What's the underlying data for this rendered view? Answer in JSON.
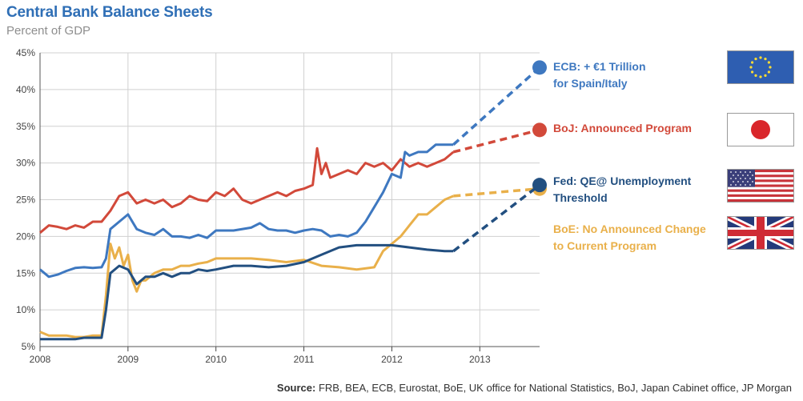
{
  "chart_data": {
    "type": "line",
    "title": "Central Bank Balance Sheets",
    "subtitle": "Percent of GDP",
    "ylim": [
      5,
      45
    ],
    "xlim": [
      2008,
      2013.68
    ],
    "yticks": [
      "5%",
      "10%",
      "15%",
      "20%",
      "25%",
      "30%",
      "35%",
      "40%",
      "45%"
    ],
    "xticks": [
      "2008",
      "2009",
      "2010",
      "2011",
      "2012",
      "2013"
    ],
    "grid": true,
    "series": [
      {
        "name": "ECB: + €1 Trillion\nfor Spain/Italy",
        "color": "#3e78c0",
        "x": [
          2008.0,
          2008.1,
          2008.2,
          2008.3,
          2008.4,
          2008.5,
          2008.6,
          2008.7,
          2008.75,
          2008.8,
          2008.9,
          2009.0,
          2009.1,
          2009.2,
          2009.3,
          2009.4,
          2009.5,
          2009.6,
          2009.7,
          2009.8,
          2009.9,
          2010.0,
          2010.2,
          2010.4,
          2010.5,
          2010.6,
          2010.7,
          2010.8,
          2010.9,
          2011.0,
          2011.1,
          2011.2,
          2011.3,
          2011.4,
          2011.5,
          2011.6,
          2011.7,
          2011.8,
          2011.9,
          2012.0,
          2012.1,
          2012.15,
          2012.2,
          2012.3,
          2012.4,
          2012.5,
          2012.6,
          2012.7
        ],
        "y": [
          15.5,
          14.5,
          14.8,
          15.3,
          15.7,
          15.8,
          15.7,
          15.8,
          17,
          21,
          22,
          23,
          21,
          20.5,
          20.2,
          21,
          20,
          20,
          19.8,
          20.2,
          19.8,
          20.8,
          20.8,
          21.2,
          21.8,
          21,
          20.8,
          20.8,
          20.5,
          20.8,
          21,
          20.8,
          20,
          20.2,
          20,
          20.5,
          22,
          24,
          26,
          28.5,
          28,
          31.5,
          31,
          31.5,
          31.5,
          32.5,
          32.5,
          32.5
        ],
        "projection": [
          [
            2012.7,
            32.5
          ],
          [
            2013.68,
            43
          ]
        ]
      },
      {
        "name": "BoJ: Announced Program",
        "color": "#d2493a",
        "x": [
          2008.0,
          2008.1,
          2008.2,
          2008.3,
          2008.4,
          2008.5,
          2008.6,
          2008.7,
          2008.8,
          2008.9,
          2009.0,
          2009.1,
          2009.2,
          2009.3,
          2009.4,
          2009.5,
          2009.6,
          2009.7,
          2009.8,
          2009.9,
          2010.0,
          2010.1,
          2010.2,
          2010.3,
          2010.4,
          2010.5,
          2010.6,
          2010.7,
          2010.8,
          2010.9,
          2011.0,
          2011.1,
          2011.15,
          2011.2,
          2011.25,
          2011.3,
          2011.4,
          2011.5,
          2011.6,
          2011.7,
          2011.8,
          2011.9,
          2012.0,
          2012.1,
          2012.2,
          2012.3,
          2012.4,
          2012.5,
          2012.6,
          2012.7
        ],
        "y": [
          20.5,
          21.5,
          21.3,
          21,
          21.5,
          21.2,
          22,
          22,
          23.5,
          25.5,
          26,
          24.5,
          25,
          24.5,
          25,
          24,
          24.5,
          25.5,
          25,
          24.8,
          26,
          25.5,
          26.5,
          25,
          24.5,
          25,
          25.5,
          26,
          25.5,
          26.2,
          26.5,
          27,
          32,
          28.5,
          30,
          28,
          28.5,
          29,
          28.5,
          30,
          29.5,
          30,
          29,
          30.5,
          29.5,
          30,
          29.5,
          30,
          30.5,
          31.5
        ],
        "projection": [
          [
            2012.7,
            31.5
          ],
          [
            2013.68,
            34.5
          ]
        ]
      },
      {
        "name": "Fed: QE@ Unemployment\nThreshold",
        "color": "#224f80",
        "x": [
          2008.0,
          2008.1,
          2008.2,
          2008.3,
          2008.4,
          2008.5,
          2008.6,
          2008.7,
          2008.75,
          2008.8,
          2008.9,
          2009.0,
          2009.1,
          2009.2,
          2009.3,
          2009.4,
          2009.5,
          2009.6,
          2009.7,
          2009.8,
          2009.9,
          2010.0,
          2010.2,
          2010.4,
          2010.6,
          2010.8,
          2011.0,
          2011.2,
          2011.4,
          2011.6,
          2011.8,
          2012.0,
          2012.2,
          2012.4,
          2012.6,
          2012.7
        ],
        "y": [
          6,
          6,
          6,
          6,
          6,
          6.2,
          6.2,
          6.2,
          10,
          15,
          16,
          15.5,
          13.5,
          14.5,
          14.5,
          15,
          14.5,
          15,
          15,
          15.5,
          15.3,
          15.5,
          16,
          16,
          15.8,
          16,
          16.5,
          17.5,
          18.5,
          18.8,
          18.8,
          18.8,
          18.5,
          18.2,
          18,
          18
        ],
        "projection": [
          [
            2012.7,
            18
          ],
          [
            2013.68,
            27
          ]
        ]
      },
      {
        "name": "BoE: No Announced Change\nto Current Program",
        "color": "#e9b04a",
        "x": [
          2008.0,
          2008.1,
          2008.2,
          2008.3,
          2008.4,
          2008.5,
          2008.6,
          2008.7,
          2008.75,
          2008.8,
          2008.85,
          2008.9,
          2008.95,
          2009.0,
          2009.05,
          2009.1,
          2009.15,
          2009.2,
          2009.3,
          2009.4,
          2009.5,
          2009.6,
          2009.7,
          2009.8,
          2009.9,
          2010.0,
          2010.2,
          2010.4,
          2010.6,
          2010.8,
          2011.0,
          2011.2,
          2011.4,
          2011.6,
          2011.8,
          2011.9,
          2012.0,
          2012.1,
          2012.2,
          2012.3,
          2012.4,
          2012.5,
          2012.6,
          2012.7
        ],
        "y": [
          7,
          6.5,
          6.5,
          6.5,
          6.3,
          6.3,
          6.5,
          6.5,
          12,
          19,
          17,
          18.5,
          16,
          17.5,
          14,
          12.5,
          14,
          14,
          15,
          15.5,
          15.5,
          16,
          16,
          16.3,
          16.5,
          17,
          17,
          17,
          16.8,
          16.5,
          16.8,
          16,
          15.8,
          15.5,
          15.8,
          18,
          19,
          20,
          21.5,
          23,
          23,
          24,
          25,
          25.5
        ],
        "projection": [
          [
            2012.7,
            25.5
          ],
          [
            2013.68,
            26.5
          ]
        ]
      }
    ]
  },
  "source": {
    "prefix": "Source:",
    "text": " FRB, BEA, ECB, Eurostat, BoE, UK office for National Statistics, BoJ, Japan Cabinet office, JP Morgan"
  },
  "flags": [
    "eu-flag-icon",
    "japan-flag-icon",
    "us-flag-icon",
    "uk-flag-icon"
  ]
}
